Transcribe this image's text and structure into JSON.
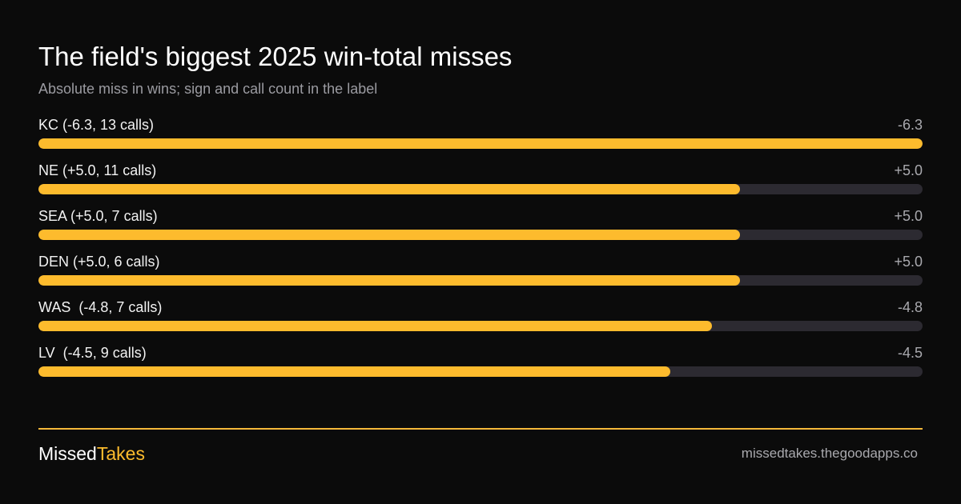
{
  "colors": {
    "background": "#0b0b0b",
    "accent": "#fdbb2d",
    "track": "#2c2a31",
    "muted_text": "#9b9ba1"
  },
  "footer": {
    "brand_part1": "Missed",
    "brand_part2": "Takes",
    "url": "missedtakes.thegoodapps.co"
  },
  "chart_data": {
    "type": "bar",
    "orientation": "horizontal",
    "title": "The field's biggest 2025 win-total misses",
    "subtitle": "Absolute miss in wins; sign and call count in the label",
    "xlim": [
      0,
      6.3
    ],
    "grid": false,
    "rows": [
      {
        "label": "KC (-6.3, 13 calls)",
        "value_label": "-6.3",
        "value": 6.3
      },
      {
        "label": "NE (+5.0, 11 calls)",
        "value_label": "+5.0",
        "value": 5.0
      },
      {
        "label": "SEA (+5.0, 7 calls)",
        "value_label": "+5.0",
        "value": 5.0
      },
      {
        "label": "DEN (+5.0, 6 calls)",
        "value_label": "+5.0",
        "value": 5.0
      },
      {
        "label": "WAS  (-4.8, 7 calls)",
        "value_label": "-4.8",
        "value": 4.8
      },
      {
        "label": "LV  (-4.5, 9 calls)",
        "value_label": "-4.5",
        "value": 4.5
      }
    ]
  }
}
